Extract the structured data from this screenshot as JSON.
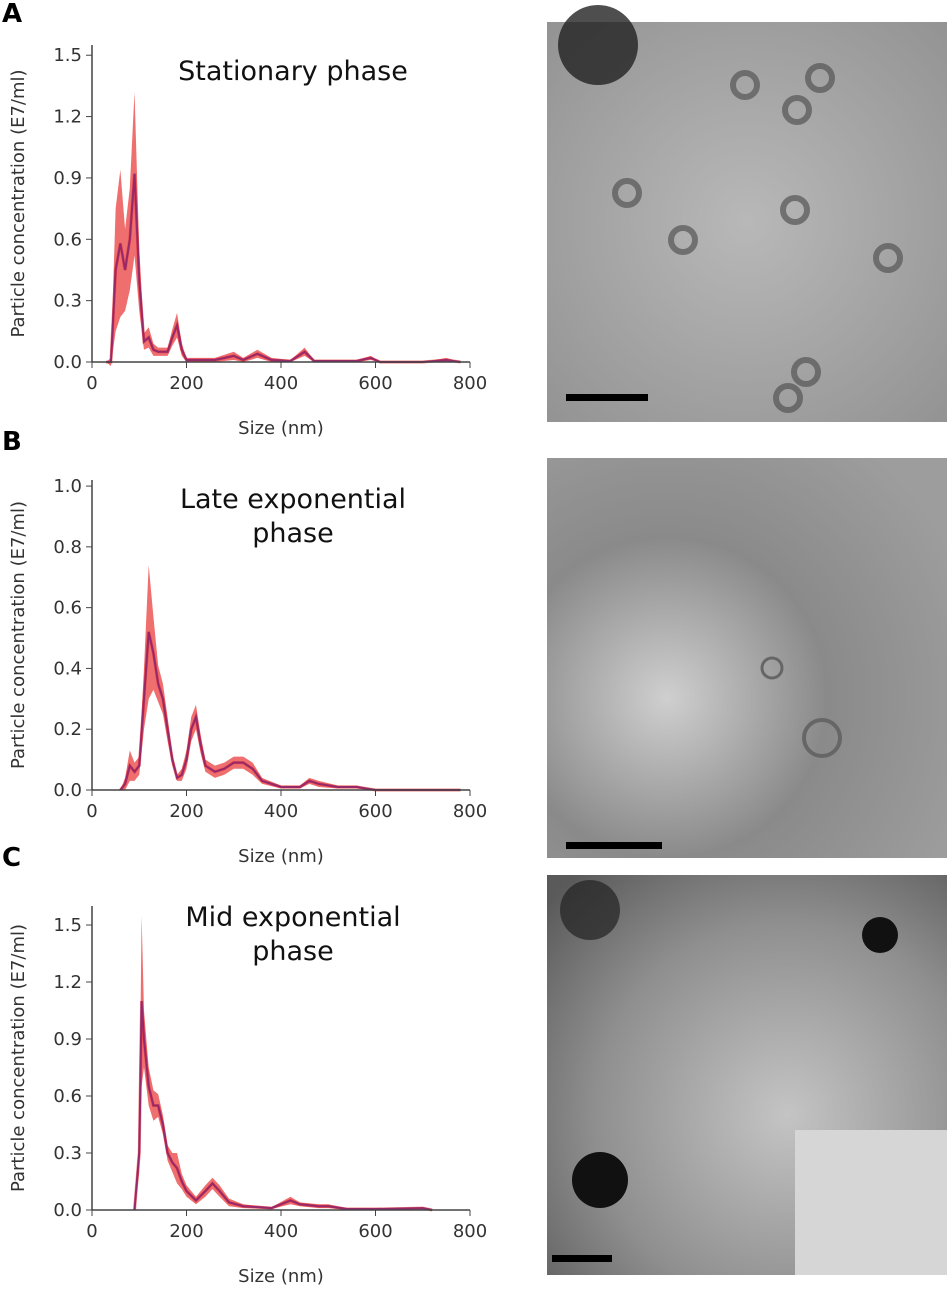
{
  "chart_data": [
    {
      "type": "line",
      "panel_label": "A",
      "title": [
        "Stationary phase"
      ],
      "xlabel": "Size (nm)",
      "ylabel": "Particle concentration (E7/ml)",
      "color": "#2020c0",
      "band_color": "#e83030",
      "x": [
        30,
        40,
        50,
        60,
        70,
        80,
        90,
        100,
        110,
        120,
        130,
        140,
        160,
        170,
        180,
        190,
        200,
        220,
        260,
        300,
        320,
        350,
        380,
        420,
        450,
        470,
        560,
        590,
        610,
        700,
        750,
        780
      ],
      "values": [
        0,
        0,
        0.45,
        0.58,
        0.45,
        0.6,
        0.92,
        0.4,
        0.1,
        0.12,
        0.06,
        0.05,
        0.05,
        0.12,
        0.18,
        0.06,
        0.01,
        0.01,
        0.01,
        0.03,
        0.01,
        0.04,
        0.01,
        0.005,
        0.05,
        0.005,
        0.005,
        0.02,
        0,
        0,
        0.01,
        0
      ],
      "error": [
        0,
        0.02,
        0.3,
        0.36,
        0.2,
        0.25,
        0.4,
        0.15,
        0.04,
        0.05,
        0.03,
        0.02,
        0.02,
        0.04,
        0.06,
        0.03,
        0.01,
        0.01,
        0.01,
        0.02,
        0.01,
        0.02,
        0.01,
        0.005,
        0.02,
        0.005,
        0.005,
        0.01,
        0,
        0,
        0.01,
        0
      ],
      "xlim": [
        0,
        800
      ],
      "xticks": [
        0,
        200,
        400,
        600,
        800
      ],
      "ylim": [
        0,
        1.55
      ],
      "yticks": [
        {
          "value": 0,
          "label": "0.0"
        },
        0.3,
        0.6,
        0.9,
        1.2,
        1.5
      ]
    },
    {
      "type": "line",
      "panel_label": "B",
      "title": [
        "Late exponential",
        "phase"
      ],
      "xlabel": "Size (nm)",
      "ylabel": "Particle concentration (E7/ml)",
      "color": "#2020c0",
      "band_color": "#e83030",
      "x": [
        60,
        70,
        80,
        90,
        100,
        110,
        120,
        130,
        140,
        150,
        160,
        170,
        180,
        190,
        200,
        210,
        220,
        230,
        240,
        260,
        280,
        300,
        320,
        340,
        360,
        400,
        440,
        460,
        480,
        520,
        560,
        600,
        700,
        780
      ],
      "values": [
        0,
        0.02,
        0.08,
        0.06,
        0.08,
        0.3,
        0.52,
        0.45,
        0.35,
        0.3,
        0.2,
        0.1,
        0.04,
        0.05,
        0.1,
        0.2,
        0.24,
        0.15,
        0.08,
        0.06,
        0.07,
        0.09,
        0.09,
        0.07,
        0.03,
        0.01,
        0.01,
        0.03,
        0.02,
        0.01,
        0.01,
        0,
        0,
        0
      ],
      "error": [
        0,
        0.02,
        0.05,
        0.03,
        0.03,
        0.1,
        0.22,
        0.12,
        0.06,
        0.05,
        0.04,
        0.02,
        0.01,
        0.02,
        0.03,
        0.04,
        0.04,
        0.03,
        0.02,
        0.02,
        0.02,
        0.02,
        0.02,
        0.02,
        0.01,
        0.005,
        0.005,
        0.01,
        0.01,
        0.005,
        0.005,
        0,
        0,
        0
      ],
      "xlim": [
        0,
        800
      ],
      "xticks": [
        0,
        200,
        400,
        600,
        800
      ],
      "ylim": [
        0,
        1.02
      ],
      "yticks": [
        {
          "value": 0,
          "label": "0.0"
        },
        0.2,
        0.4,
        0.6,
        0.8,
        {
          "value": 1,
          "label": "1.0"
        }
      ]
    },
    {
      "type": "line",
      "panel_label": "C",
      "title": [
        "Mid exponential",
        "phase"
      ],
      "xlabel": "Size (nm)",
      "ylabel": "Particle concentration (E7/ml)",
      "color": "#2020c0",
      "band_color": "#e83030",
      "x": [
        90,
        100,
        105,
        110,
        120,
        130,
        140,
        150,
        160,
        170,
        180,
        190,
        200,
        220,
        240,
        255,
        270,
        290,
        320,
        380,
        420,
        440,
        480,
        500,
        540,
        600,
        700,
        720
      ],
      "values": [
        0,
        0.3,
        1.1,
        0.9,
        0.65,
        0.55,
        0.55,
        0.45,
        0.3,
        0.25,
        0.22,
        0.15,
        0.1,
        0.05,
        0.1,
        0.14,
        0.1,
        0.04,
        0.02,
        0.01,
        0.05,
        0.03,
        0.02,
        0.02,
        0.005,
        0.005,
        0.01,
        0
      ],
      "error": [
        0,
        0.1,
        0.45,
        0.15,
        0.1,
        0.08,
        0.06,
        0.05,
        0.04,
        0.05,
        0.08,
        0.04,
        0.03,
        0.02,
        0.03,
        0.03,
        0.03,
        0.02,
        0.01,
        0.005,
        0.02,
        0.01,
        0.01,
        0.01,
        0.005,
        0.005,
        0.005,
        0
      ],
      "xlim": [
        0,
        800
      ],
      "xticks": [
        0,
        200,
        400,
        600,
        800
      ],
      "ylim": [
        0,
        1.6
      ],
      "yticks": [
        {
          "value": 0,
          "label": "0.0"
        },
        0.3,
        0.6,
        0.9,
        1.2,
        1.5
      ]
    }
  ]
}
